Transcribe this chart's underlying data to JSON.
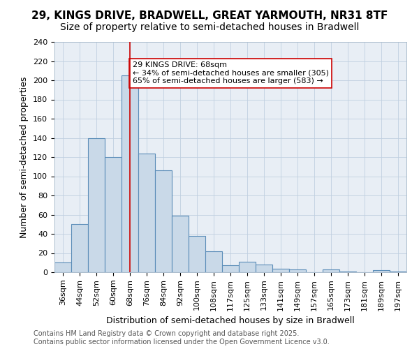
{
  "title_line1": "29, KINGS DRIVE, BRADWELL, GREAT YARMOUTH, NR31 8TF",
  "title_line2": "Size of property relative to semi-detached houses in Bradwell",
  "xlabel": "Distribution of semi-detached houses by size in Bradwell",
  "ylabel": "Number of semi-detached properties",
  "bins": [
    "36sqm",
    "44sqm",
    "52sqm",
    "60sqm",
    "68sqm",
    "76sqm",
    "84sqm",
    "92sqm",
    "100sqm",
    "108sqm",
    "117sqm",
    "125sqm",
    "133sqm",
    "141sqm",
    "149sqm",
    "157sqm",
    "165sqm",
    "173sqm",
    "181sqm",
    "189sqm",
    "197sqm"
  ],
  "values": [
    10,
    50,
    140,
    120,
    205,
    124,
    106,
    59,
    38,
    22,
    7,
    11,
    8,
    4,
    3,
    0,
    3,
    1,
    0,
    2,
    1
  ],
  "bar_color": "#c9d9e8",
  "bar_edge_color": "#5b8db8",
  "highlight_bin_index": 4,
  "highlight_line_color": "#cc0000",
  "annotation_text": "29 KINGS DRIVE: 68sqm\n← 34% of semi-detached houses are smaller (305)\n65% of semi-detached houses are larger (583) →",
  "annotation_box_color": "#ffffff",
  "annotation_box_edge_color": "#cc0000",
  "ylim": [
    0,
    240
  ],
  "yticks": [
    0,
    20,
    40,
    60,
    80,
    100,
    120,
    140,
    160,
    180,
    200,
    220,
    240
  ],
  "grid_color": "#c0cfe0",
  "background_color": "#e8eef5",
  "footer_text": "Contains HM Land Registry data © Crown copyright and database right 2025.\nContains public sector information licensed under the Open Government Licence v3.0.",
  "title_fontsize": 11,
  "subtitle_fontsize": 10,
  "axis_label_fontsize": 9,
  "tick_fontsize": 8,
  "annotation_fontsize": 8,
  "footer_fontsize": 7
}
